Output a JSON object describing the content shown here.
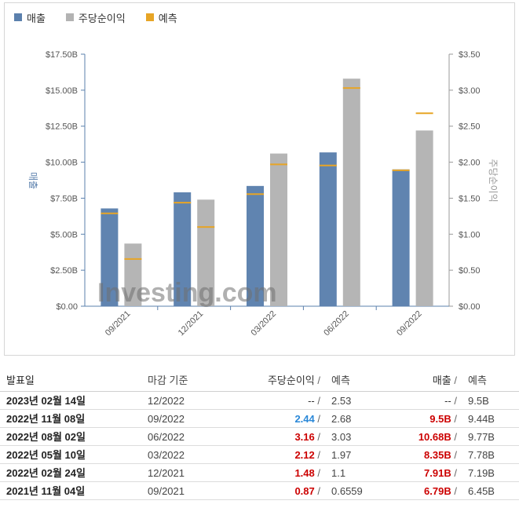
{
  "legend": {
    "revenue": "매출",
    "eps": "주당순이익",
    "forecast": "예측"
  },
  "colors": {
    "revenue": "#5b80ad",
    "eps": "#b3b3b3",
    "forecast": "#e7a526",
    "beat": "#cc0000",
    "miss": "#2a88d8"
  },
  "chart_data": {
    "type": "bar",
    "categories": [
      "09/2021",
      "12/2021",
      "03/2022",
      "06/2022",
      "09/2022"
    ],
    "series": [
      {
        "name": "매출",
        "axis": "left",
        "values": [
          6.79,
          7.91,
          8.35,
          10.68,
          9.5
        ],
        "forecast": [
          6.45,
          7.19,
          7.78,
          9.77,
          9.44
        ]
      },
      {
        "name": "주당순이익",
        "axis": "right",
        "values": [
          0.87,
          1.48,
          2.12,
          3.16,
          2.44
        ],
        "forecast": [
          0.6559,
          1.1,
          1.97,
          3.03,
          2.68
        ]
      }
    ],
    "ylabel_left": "매출",
    "ylabel_right": "주당순이익",
    "ylim_left": [
      0,
      17.5
    ],
    "ylim_right": [
      0,
      3.5
    ],
    "yticks_left": [
      "$0.00",
      "$2.50B",
      "$5.00B",
      "$7.50B",
      "$10.00B",
      "$12.50B",
      "$15.00B",
      "$17.50B"
    ],
    "yticks_right": [
      "$0.00",
      "$0.50",
      "$1.00",
      "$1.50",
      "$2.00",
      "$2.50",
      "$3.00",
      "$3.50"
    ],
    "watermark": "Investing.com"
  },
  "table": {
    "headers": {
      "date": "발표일",
      "period": "마감 기준",
      "eps": "주당순이익",
      "eps_forecast": "예측",
      "revenue": "매출",
      "revenue_forecast": "예측",
      "sep": "/"
    },
    "rows": [
      {
        "date": "2023년 02월 14일",
        "period": "12/2022",
        "eps": "--",
        "eps_forecast": "2.53",
        "revenue": "--",
        "revenue_forecast": "9.5B",
        "eps_status": "none",
        "rev_status": "none"
      },
      {
        "date": "2022년 11월 08일",
        "period": "09/2022",
        "eps": "2.44",
        "eps_forecast": "2.68",
        "revenue": "9.5B",
        "revenue_forecast": "9.44B",
        "eps_status": "miss",
        "rev_status": "beat"
      },
      {
        "date": "2022년 08월 02일",
        "period": "06/2022",
        "eps": "3.16",
        "eps_forecast": "3.03",
        "revenue": "10.68B",
        "revenue_forecast": "9.77B",
        "eps_status": "beat",
        "rev_status": "beat"
      },
      {
        "date": "2022년 05월 10일",
        "period": "03/2022",
        "eps": "2.12",
        "eps_forecast": "1.97",
        "revenue": "8.35B",
        "revenue_forecast": "7.78B",
        "eps_status": "beat",
        "rev_status": "beat"
      },
      {
        "date": "2022년 02월 24일",
        "period": "12/2021",
        "eps": "1.48",
        "eps_forecast": "1.1",
        "revenue": "7.91B",
        "revenue_forecast": "7.19B",
        "eps_status": "beat",
        "rev_status": "beat"
      },
      {
        "date": "2021년 11월 04일",
        "period": "09/2021",
        "eps": "0.87",
        "eps_forecast": "0.6559",
        "revenue": "6.79B",
        "revenue_forecast": "6.45B",
        "eps_status": "beat",
        "rev_status": "beat"
      }
    ]
  }
}
